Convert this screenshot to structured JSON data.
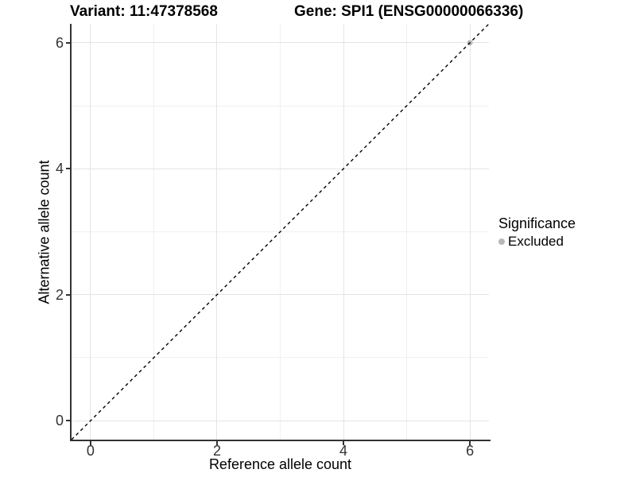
{
  "titles": {
    "variant": "Variant: 11:47378568",
    "gene": "Gene: SPI1 (ENSG00000066336)"
  },
  "chart_data": {
    "type": "scatter",
    "xlabel": "Reference allele count",
    "ylabel": "Alternative allele count",
    "xlim": [
      -0.3,
      6.3
    ],
    "ylim": [
      -0.3,
      6.3
    ],
    "x_ticks": [
      0,
      2,
      4,
      6
    ],
    "y_ticks": [
      0,
      2,
      4,
      6
    ],
    "x_minor_ticks": [
      1,
      3,
      5
    ],
    "y_minor_ticks": [
      1,
      3,
      5
    ],
    "grid": true,
    "points": [
      {
        "x": 6,
        "y": 6,
        "significance": "Excluded"
      }
    ],
    "reference_line": {
      "slope": 1,
      "intercept": 0,
      "style": "dashed",
      "color": "#000000"
    },
    "legend": {
      "title": "Significance",
      "position": "right",
      "items": [
        {
          "label": "Excluded",
          "color": "#b8b8b8",
          "marker": "circle"
        }
      ]
    },
    "colors": {
      "major_grid": "#e4e4e4",
      "minor_grid": "#f0f0f0",
      "axis_line": "#333333",
      "tick_text": "#333333",
      "title_text": "#000000"
    }
  }
}
